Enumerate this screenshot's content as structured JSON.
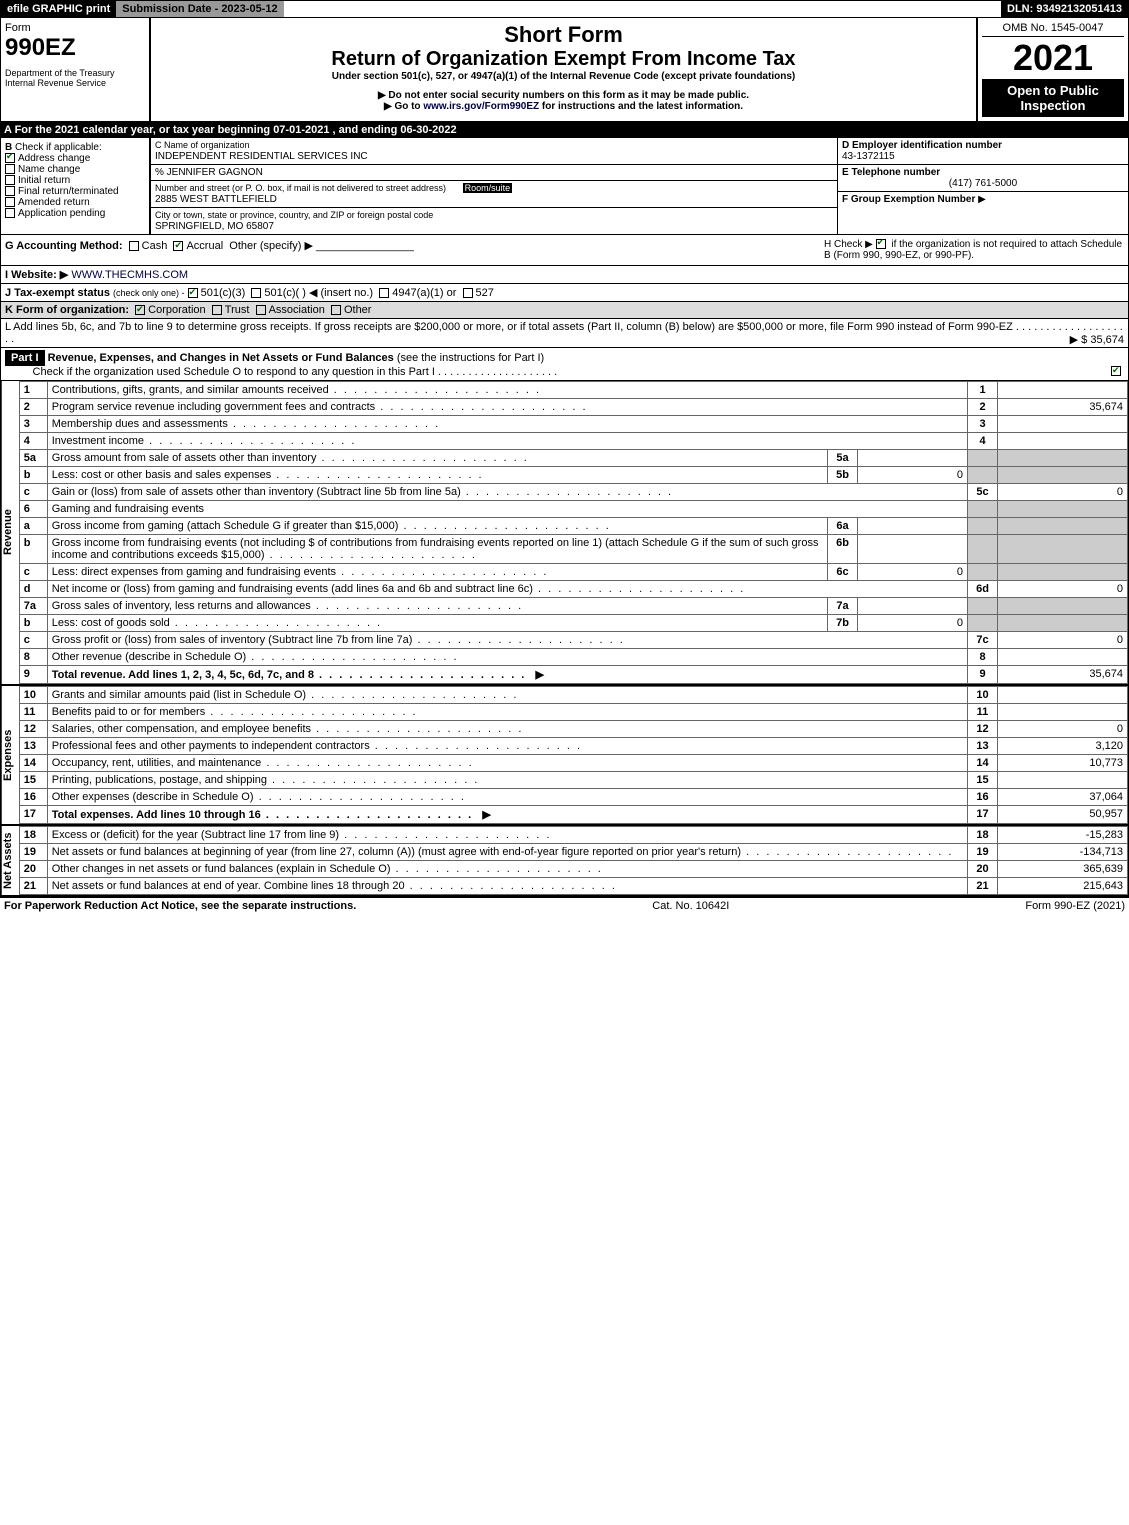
{
  "topbar": {
    "efile": "efile GRAPHIC print",
    "submission": "Submission Date - 2023-05-12",
    "dln": "DLN: 93492132051413"
  },
  "header": {
    "form_label": "Form",
    "form_no": "990EZ",
    "dept": "Department of the Treasury\nInternal Revenue Service",
    "short_form": "Short Form",
    "title": "Return of Organization Exempt From Income Tax",
    "under": "Under section 501(c), 527, or 4947(a)(1) of the Internal Revenue Code (except private foundations)",
    "no_ssn": "▶ Do not enter social security numbers on this form as it may be made public.",
    "goto": "▶ Go to www.irs.gov/Form990EZ for instructions and the latest information.",
    "goto_link": "www.irs.gov/Form990EZ",
    "omb": "OMB No. 1545-0047",
    "year": "2021",
    "open": "Open to Public Inspection"
  },
  "rowA": "A  For the 2021 calendar year, or tax year beginning 07-01-2021 , and ending 06-30-2022",
  "B": {
    "label": "B",
    "check_if": "Check if applicable:",
    "items": [
      {
        "label": "Address change",
        "checked": true
      },
      {
        "label": "Name change",
        "checked": false
      },
      {
        "label": "Initial return",
        "checked": false
      },
      {
        "label": "Final return/terminated",
        "checked": false
      },
      {
        "label": "Amended return",
        "checked": false
      },
      {
        "label": "Application pending",
        "checked": false
      }
    ]
  },
  "C": {
    "name_label": "C Name of organization",
    "name": "INDEPENDENT RESIDENTIAL SERVICES INC",
    "co": "% JENNIFER GAGNON",
    "street_label": "Number and street (or P. O. box, if mail is not delivered to street address)",
    "room_label": "Room/suite",
    "street": "2885 WEST BATTLEFIELD",
    "city_label": "City or town, state or province, country, and ZIP or foreign postal code",
    "city": "SPRINGFIELD, MO  65807"
  },
  "D": {
    "label": "D Employer identification number",
    "ein": "43-1372115"
  },
  "E": {
    "label": "E Telephone number",
    "phone": "(417) 761-5000"
  },
  "F": {
    "label": "F Group Exemption Number",
    "arrow": "▶"
  },
  "G": {
    "label": "G Accounting Method:",
    "cash": "Cash",
    "accrual": "Accrual",
    "other": "Other (specify) ▶"
  },
  "H": {
    "text": "H  Check ▶",
    "if_not": "if the organization is not required to attach Schedule B (Form 990, 990-EZ, or 990-PF)."
  },
  "I": {
    "label": "I Website: ▶",
    "url": "WWW.THECMHS.COM"
  },
  "J": {
    "label": "J Tax-exempt status",
    "sub": "(check only one) -",
    "opt501c3": "501(c)(3)",
    "opt501c": "501(c)(  ) ◀ (insert no.)",
    "opt4947": "4947(a)(1) or",
    "opt527": "527"
  },
  "K": {
    "label": "K Form of organization:",
    "corp": "Corporation",
    "trust": "Trust",
    "assoc": "Association",
    "other": "Other"
  },
  "L": {
    "text": "L Add lines 5b, 6c, and 7b to line 9 to determine gross receipts. If gross receipts are $200,000 or more, or if total assets (Part II, column (B) below) are $500,000 or more, file Form 990 instead of Form 990-EZ",
    "amount": "▶ $ 35,674"
  },
  "part1": {
    "label": "Part I",
    "title": "Revenue, Expenses, and Changes in Net Assets or Fund Balances",
    "see": "(see the instructions for Part I)",
    "check": "Check if the organization used Schedule O to respond to any question in this Part I"
  },
  "sections": {
    "revenue": "Revenue",
    "expenses": "Expenses",
    "netassets": "Net Assets"
  },
  "lines": [
    {
      "n": "1",
      "desc": "Contributions, gifts, grants, and similar amounts received",
      "rn": "1",
      "rv": ""
    },
    {
      "n": "2",
      "desc": "Program service revenue including government fees and contracts",
      "rn": "2",
      "rv": "35,674"
    },
    {
      "n": "3",
      "desc": "Membership dues and assessments",
      "rn": "3",
      "rv": ""
    },
    {
      "n": "4",
      "desc": "Investment income",
      "rn": "4",
      "rv": ""
    },
    {
      "n": "5a",
      "desc": "Gross amount from sale of assets other than inventory",
      "mn": "5a",
      "mv": "",
      "shade": true
    },
    {
      "n": "b",
      "desc": "Less: cost or other basis and sales expenses",
      "mn": "5b",
      "mv": "0",
      "shade": true
    },
    {
      "n": "c",
      "desc": "Gain or (loss) from sale of assets other than inventory (Subtract line 5b from line 5a)",
      "rn": "5c",
      "rv": "0"
    },
    {
      "n": "6",
      "desc": "Gaming and fundraising events",
      "shade": true
    },
    {
      "n": "a",
      "desc": "Gross income from gaming (attach Schedule G if greater than $15,000)",
      "mn": "6a",
      "mv": "",
      "shade": true
    },
    {
      "n": "b",
      "desc": "Gross income from fundraising events (not including $                     of contributions from fundraising events reported on line 1) (attach Schedule G if the sum of such gross income and contributions exceeds $15,000)",
      "mn": "6b",
      "mv": "",
      "shade": true
    },
    {
      "n": "c",
      "desc": "Less: direct expenses from gaming and fundraising events",
      "mn": "6c",
      "mv": "0",
      "shade": true
    },
    {
      "n": "d",
      "desc": "Net income or (loss) from gaming and fundraising events (add lines 6a and 6b and subtract line 6c)",
      "rn": "6d",
      "rv": "0"
    },
    {
      "n": "7a",
      "desc": "Gross sales of inventory, less returns and allowances",
      "mn": "7a",
      "mv": "",
      "shade": true
    },
    {
      "n": "b",
      "desc": "Less: cost of goods sold",
      "mn": "7b",
      "mv": "0",
      "shade": true
    },
    {
      "n": "c",
      "desc": "Gross profit or (loss) from sales of inventory (Subtract line 7b from line 7a)",
      "rn": "7c",
      "rv": "0"
    },
    {
      "n": "8",
      "desc": "Other revenue (describe in Schedule O)",
      "rn": "8",
      "rv": ""
    },
    {
      "n": "9",
      "desc": "Total revenue. Add lines 1, 2, 3, 4, 5c, 6d, 7c, and 8",
      "rn": "9",
      "rv": "35,674",
      "bold": true,
      "arrow": true
    }
  ],
  "exp_lines": [
    {
      "n": "10",
      "desc": "Grants and similar amounts paid (list in Schedule O)",
      "rn": "10",
      "rv": ""
    },
    {
      "n": "11",
      "desc": "Benefits paid to or for members",
      "rn": "11",
      "rv": ""
    },
    {
      "n": "12",
      "desc": "Salaries, other compensation, and employee benefits",
      "rn": "12",
      "rv": "0"
    },
    {
      "n": "13",
      "desc": "Professional fees and other payments to independent contractors",
      "rn": "13",
      "rv": "3,120"
    },
    {
      "n": "14",
      "desc": "Occupancy, rent, utilities, and maintenance",
      "rn": "14",
      "rv": "10,773"
    },
    {
      "n": "15",
      "desc": "Printing, publications, postage, and shipping",
      "rn": "15",
      "rv": ""
    },
    {
      "n": "16",
      "desc": "Other expenses (describe in Schedule O)",
      "rn": "16",
      "rv": "37,064"
    },
    {
      "n": "17",
      "desc": "Total expenses. Add lines 10 through 16",
      "rn": "17",
      "rv": "50,957",
      "bold": true,
      "arrow": true
    }
  ],
  "na_lines": [
    {
      "n": "18",
      "desc": "Excess or (deficit) for the year (Subtract line 17 from line 9)",
      "rn": "18",
      "rv": "-15,283"
    },
    {
      "n": "19",
      "desc": "Net assets or fund balances at beginning of year (from line 27, column (A)) (must agree with end-of-year figure reported on prior year's return)",
      "rn": "19",
      "rv": "-134,713"
    },
    {
      "n": "20",
      "desc": "Other changes in net assets or fund balances (explain in Schedule O)",
      "rn": "20",
      "rv": "365,639"
    },
    {
      "n": "21",
      "desc": "Net assets or fund balances at end of year. Combine lines 18 through 20",
      "rn": "21",
      "rv": "215,643"
    }
  ],
  "footer": {
    "left": "For Paperwork Reduction Act Notice, see the separate instructions.",
    "center": "Cat. No. 10642I",
    "right": "Form 990-EZ (2021)"
  }
}
